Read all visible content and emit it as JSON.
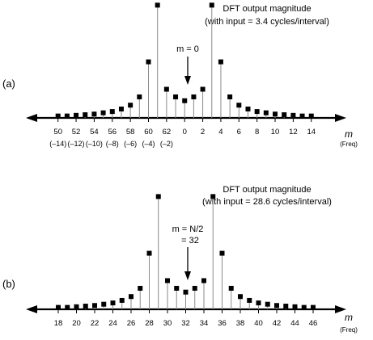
{
  "colors": {
    "ink": "#000000",
    "stem": "#8a8a8a",
    "background": "#ffffff"
  },
  "axis_symbol": "m",
  "axis_unit": "(Freq)",
  "panels": [
    {
      "label": "(a)",
      "title_line1": "DFT output magnitude",
      "title_line2": "(with input = 3.4 cycles/interval)",
      "annotation_line1": "m = 0",
      "annotation_line2": "",
      "tick_labels": [
        "50",
        "52",
        "54",
        "56",
        "58",
        "60",
        "62",
        "0",
        "2",
        "4",
        "6",
        "8",
        "10",
        "12",
        "14"
      ],
      "negative_labels": [
        "(–14)",
        "(–12)",
        "(–10)",
        "(–8)",
        "(–6)",
        "(–4)",
        "(–2)"
      ]
    },
    {
      "label": "(b)",
      "title_line1": "DFT output magnitude",
      "title_line2": "(with input = 28.6 cycles/interval)",
      "annotation_line1": "m = N/2",
      "annotation_line2": "= 32",
      "tick_labels": [
        "18",
        "20",
        "22",
        "24",
        "26",
        "28",
        "30",
        "32",
        "34",
        "36",
        "38",
        "40",
        "42",
        "44",
        "46"
      ],
      "negative_labels": []
    }
  ],
  "chart_data": [
    {
      "type": "scatter",
      "title": "DFT output magnitude (with input = 3.4 cycles/interval)",
      "xlabel": "m (Freq)",
      "ylabel": "",
      "categories": [
        "50",
        "51",
        "52",
        "53",
        "54",
        "55",
        "56",
        "57",
        "58",
        "59",
        "60",
        "61",
        "62",
        "63",
        "0",
        "1",
        "2",
        "3",
        "4",
        "5",
        "6",
        "7",
        "8",
        "9",
        "10",
        "11",
        "12",
        "13",
        "14"
      ],
      "series": [
        {
          "name": "DFT output magnitude",
          "values": [
            0.3,
            0.3,
            0.4,
            0.5,
            0.6,
            0.8,
            1.0,
            1.4,
            2.0,
            3.3,
            8.8,
            17.7,
            4.5,
            3.3,
            2.7,
            3.3,
            4.5,
            17.7,
            8.8,
            3.3,
            2.0,
            1.4,
            1.0,
            0.8,
            0.6,
            0.5,
            0.4,
            0.3,
            0.3
          ]
        }
      ],
      "ylim": [
        0,
        18
      ]
    },
    {
      "type": "scatter",
      "title": "DFT output magnitude (with input = 28.6 cycles/interval)",
      "xlabel": "m (Freq)",
      "ylabel": "",
      "categories": [
        "18",
        "19",
        "20",
        "21",
        "22",
        "23",
        "24",
        "25",
        "26",
        "27",
        "28",
        "29",
        "30",
        "31",
        "32",
        "33",
        "34",
        "35",
        "36",
        "37",
        "38",
        "39",
        "40",
        "41",
        "42",
        "43",
        "44",
        "45",
        "46"
      ],
      "series": [
        {
          "name": "DFT output magnitude",
          "values": [
            0.3,
            0.3,
            0.4,
            0.5,
            0.6,
            0.8,
            1.0,
            1.4,
            2.0,
            3.3,
            8.8,
            17.7,
            4.5,
            3.3,
            2.7,
            3.3,
            4.5,
            17.7,
            8.8,
            3.3,
            2.0,
            1.4,
            1.0,
            0.8,
            0.6,
            0.5,
            0.4,
            0.3,
            0.3
          ]
        }
      ],
      "ylim": [
        0,
        18
      ]
    }
  ]
}
